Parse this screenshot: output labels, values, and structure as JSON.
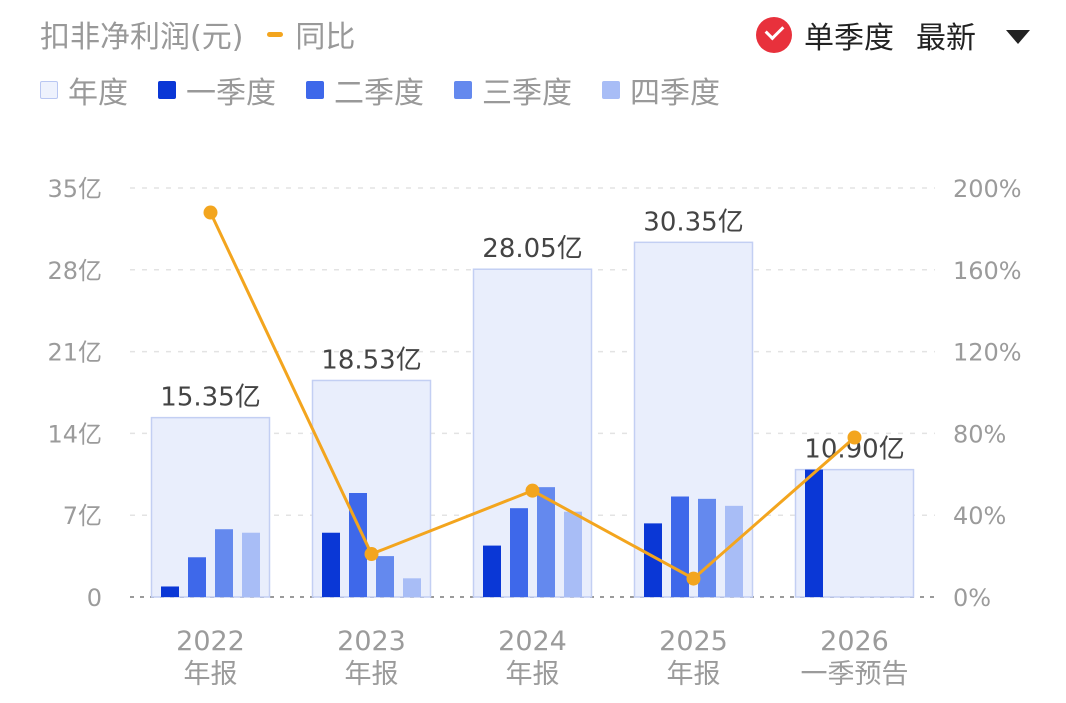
{
  "header": {
    "title": "扣非净利润(元)",
    "yoy_label": "同比",
    "quarterly_label": "单季度",
    "sort_label": "最新"
  },
  "legend": [
    {
      "name": "年度",
      "color": "#EEF2FD"
    },
    {
      "name": "一季度",
      "color": "#0A37D6"
    },
    {
      "name": "二季度",
      "color": "#3E68EA"
    },
    {
      "name": "三季度",
      "color": "#6489EE"
    },
    {
      "name": "四季度",
      "color": "#A8BDF6"
    }
  ],
  "chart_data": {
    "type": "bar",
    "categories": [
      "2022\n年报",
      "2023\n年报",
      "2024\n年报",
      "2025\n年报",
      "2026\n一季预告"
    ],
    "annual": {
      "name": "年度",
      "values": [
        15.35,
        18.53,
        28.05,
        30.35,
        10.9
      ],
      "labels": [
        "15.35亿",
        "18.53亿",
        "28.05亿",
        "30.35亿",
        "10.90亿"
      ]
    },
    "quarters": [
      {
        "name": "一季度",
        "values": [
          0.9,
          5.5,
          4.4,
          6.3,
          10.9
        ]
      },
      {
        "name": "二季度",
        "values": [
          3.4,
          8.9,
          7.6,
          8.6,
          null
        ]
      },
      {
        "name": "三季度",
        "values": [
          5.8,
          3.5,
          9.4,
          8.4,
          null
        ]
      },
      {
        "name": "四季度",
        "values": [
          5.5,
          1.6,
          7.3,
          7.8,
          null
        ]
      }
    ],
    "yoy": {
      "name": "同比",
      "values": [
        188,
        21,
        52,
        9,
        78
      ],
      "unit": "%"
    },
    "y_left": {
      "ticks": [
        0,
        7,
        14,
        21,
        28,
        35
      ],
      "tick_labels": [
        "0",
        "7亿",
        "14亿",
        "21亿",
        "28亿",
        "35亿"
      ],
      "range": [
        0,
        35
      ]
    },
    "y_right": {
      "ticks": [
        0,
        40,
        80,
        120,
        160,
        200
      ],
      "tick_labels": [
        "0%",
        "40%",
        "80%",
        "120%",
        "160%",
        "200%"
      ],
      "range": [
        0,
        200
      ]
    },
    "grid": true,
    "legend_position": "top-left"
  }
}
